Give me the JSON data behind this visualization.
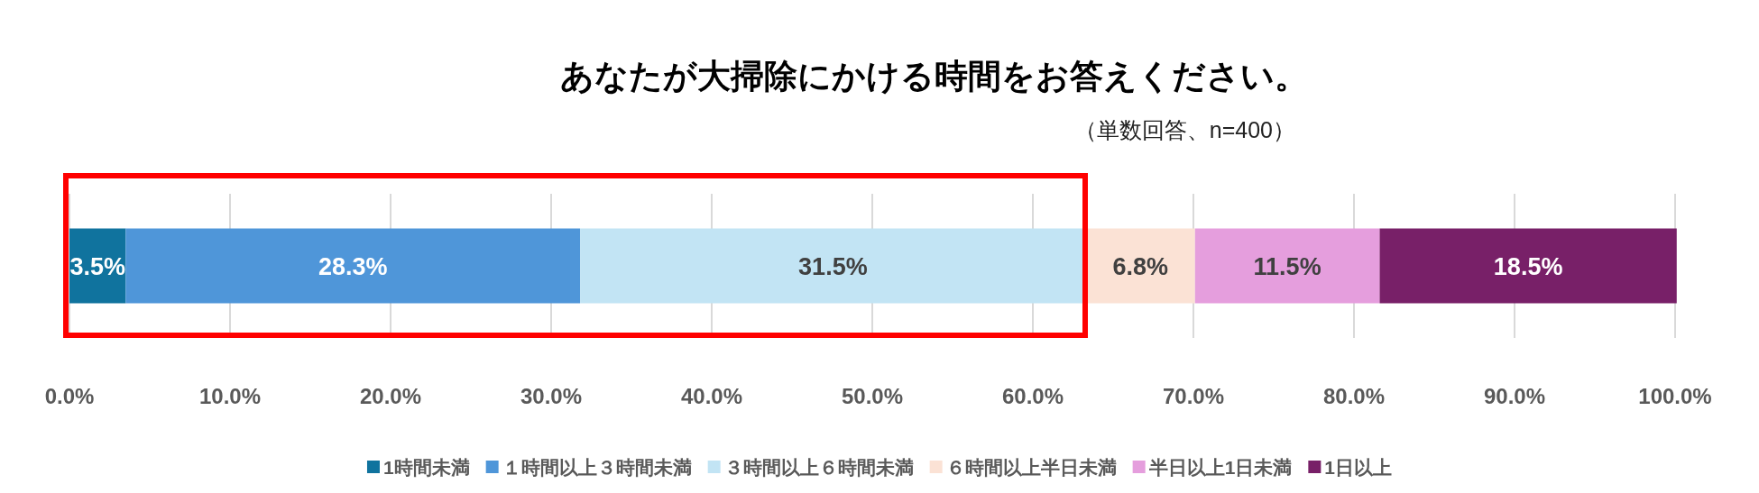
{
  "chart_data": {
    "type": "bar",
    "orientation": "horizontal",
    "stacked": true,
    "title": "あなたが大掃除にかける時間をお答えください。",
    "subtitle": "（単数回答、n=400）",
    "categories": [
      null
    ],
    "series": [
      {
        "name": "1時間未満",
        "color": "#10739e",
        "values": [
          3.5
        ],
        "value_labels": [
          "3.5%"
        ]
      },
      {
        "name": "１時間以上３時間未満",
        "color": "#4f96d9",
        "values": [
          28.3
        ],
        "value_labels": [
          "28.3%"
        ]
      },
      {
        "name": "３時間以上６時間未満",
        "color": "#c2e4f4",
        "values": [
          31.5
        ],
        "value_labels": [
          "31.5%"
        ]
      },
      {
        "name": "６時間以上半日未満",
        "color": "#fbe2d5",
        "values": [
          6.8
        ],
        "value_labels": [
          "6.8%"
        ]
      },
      {
        "name": "半日以上1日未満",
        "color": "#e59edd",
        "values": [
          11.5
        ],
        "value_labels": [
          "11.5%"
        ]
      },
      {
        "name": "1日以上",
        "color": "#782068",
        "values": [
          18.5
        ],
        "value_labels": [
          "18.5%"
        ]
      }
    ],
    "xlim": [
      0,
      100
    ],
    "xticks": [
      {
        "value": 0,
        "label": "0.0%"
      },
      {
        "value": 10,
        "label": "10.0%"
      },
      {
        "value": 20,
        "label": "20.0%"
      },
      {
        "value": 30,
        "label": "30.0%"
      },
      {
        "value": 40,
        "label": "40.0%"
      },
      {
        "value": 50,
        "label": "50.0%"
      },
      {
        "value": 60,
        "label": "60.0%"
      },
      {
        "value": 70,
        "label": "70.0%"
      },
      {
        "value": 80,
        "label": "80.0%"
      },
      {
        "value": 90,
        "label": "90.0%"
      },
      {
        "value": 100,
        "label": "100.0%"
      }
    ],
    "grid": "x",
    "legend": "bottom"
  }
}
